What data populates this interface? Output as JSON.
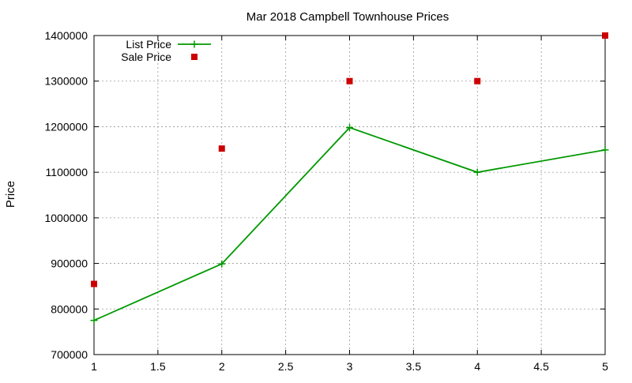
{
  "chart_data": {
    "type": "line",
    "title": "Mar 2018 Campbell Townhouse Prices",
    "xlabel": "",
    "ylabel": "Price",
    "xlim": [
      1,
      5
    ],
    "ylim": [
      700000,
      1400000
    ],
    "x_ticks": [
      1,
      1.5,
      2,
      2.5,
      3,
      3.5,
      4,
      4.5,
      5
    ],
    "x_tick_labels": [
      "1",
      "1.5",
      "2",
      "2.5",
      "3",
      "3.5",
      "4",
      "4.5",
      "5"
    ],
    "y_ticks": [
      700000,
      800000,
      900000,
      1000000,
      1100000,
      1200000,
      1300000,
      1400000
    ],
    "y_tick_labels": [
      "700000",
      "800000",
      "900000",
      "1000000",
      "1100000",
      "1200000",
      "1300000",
      "1400000"
    ],
    "grid": true,
    "legend_position": "top-left",
    "series": [
      {
        "name": "List Price",
        "style": "line-points",
        "marker": "plus",
        "color": "#009900",
        "x": [
          1,
          2,
          3,
          4,
          5
        ],
        "y": [
          775000,
          899000,
          1198000,
          1100000,
          1149000
        ]
      },
      {
        "name": "Sale Price",
        "style": "points",
        "marker": "square",
        "color": "#cc0000",
        "x": [
          1,
          2,
          3,
          4,
          5
        ],
        "y": [
          855000,
          1152000,
          1300000,
          1300000,
          1400000
        ]
      }
    ]
  }
}
